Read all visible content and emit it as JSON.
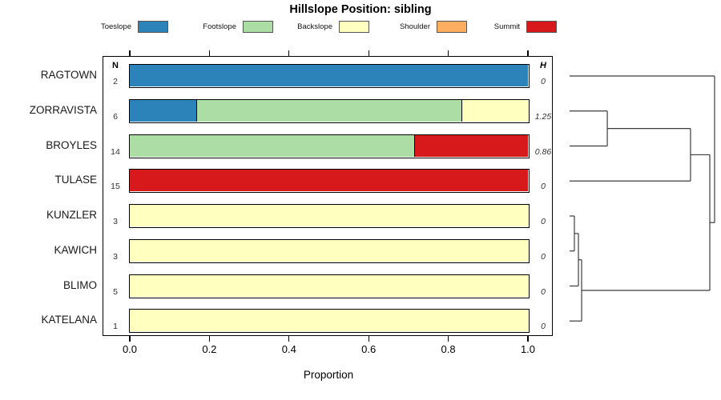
{
  "chart_data": {
    "type": "bar",
    "variant": "horizontal-stacked-proportion",
    "title": "Hillslope Position: sibling",
    "xlabel": "Proportion",
    "xlim": [
      0,
      1
    ],
    "x_ticks": [
      "0.0",
      "0.2",
      "0.4",
      "0.6",
      "0.8",
      "1.0"
    ],
    "grid": false,
    "legend_position": "top",
    "categories": [
      "RAGTOWN",
      "ZORRAVISTA",
      "BROYLES",
      "TULASE",
      "KUNZLER",
      "KAWICH",
      "BLIMO",
      "KATELANA"
    ],
    "n_column": {
      "header": "N",
      "values": [
        "2",
        "6",
        "14",
        "15",
        "3",
        "3",
        "5",
        "1"
      ]
    },
    "h_column": {
      "header": "H",
      "values": [
        "0",
        "1.25",
        "0.86",
        "0",
        "0",
        "0",
        "0",
        "0"
      ]
    },
    "series": [
      {
        "name": "Toeslope",
        "color": "#2b83ba",
        "values": [
          1,
          0.1667,
          0,
          0,
          0,
          0,
          0,
          0
        ]
      },
      {
        "name": "Footslope",
        "color": "#abdda4",
        "values": [
          0,
          0.6666,
          0.7143,
          0,
          0,
          0,
          0,
          0
        ]
      },
      {
        "name": "Backslope",
        "color": "#ffffbf",
        "values": [
          0,
          0.1667,
          0,
          0,
          1,
          1,
          1,
          1
        ]
      },
      {
        "name": "Shoulder",
        "color": "#fdae61",
        "values": [
          0,
          0,
          0,
          0,
          0,
          0,
          0,
          0
        ]
      },
      {
        "name": "Summit",
        "color": "#d7191c",
        "values": [
          0,
          0,
          0.2857,
          1,
          0,
          0,
          0,
          0
        ]
      }
    ],
    "dendrogram": {
      "orientation": "right",
      "merges": [
        {
          "a": "leaf:1",
          "b": "leaf:2",
          "height": 0.26
        },
        {
          "a": "merge:0",
          "b": "leaf:3",
          "height": 0.834
        },
        {
          "a": "leaf:4",
          "b": "leaf:5",
          "height": 0.033
        },
        {
          "a": "merge:2",
          "b": "leaf:6",
          "height": 0.061
        },
        {
          "a": "merge:3",
          "b": "leaf:7",
          "height": 0.083
        },
        {
          "a": "merge:1",
          "b": "merge:4",
          "height": 0.967
        },
        {
          "a": "leaf:0",
          "b": "merge:5",
          "height": 1.0
        }
      ]
    }
  }
}
